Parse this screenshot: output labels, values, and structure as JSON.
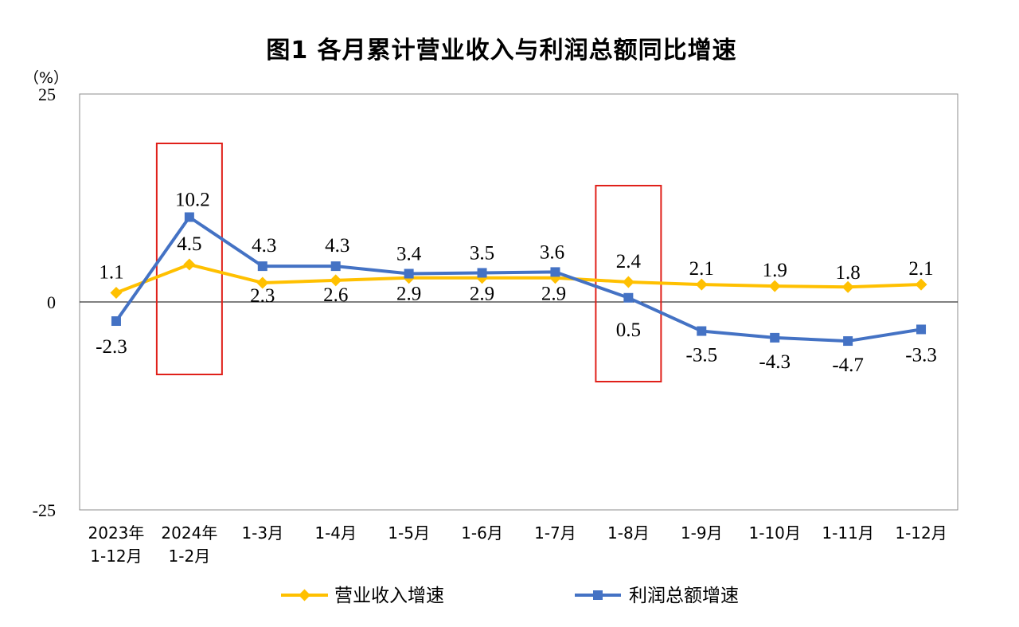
{
  "chart_data": {
    "type": "line",
    "title": "图1  各月累计营业收入与利润总额同比增速",
    "ylabel": "（%）",
    "ylim": [
      -25,
      25
    ],
    "y_ticks": [
      "25",
      "0",
      "-25"
    ],
    "grid": false,
    "legend_position": "bottom",
    "categories": [
      [
        "2023年",
        "1-12月"
      ],
      [
        "2024年",
        "1-2月"
      ],
      [
        "1-3月"
      ],
      [
        "1-4月"
      ],
      [
        "1-5月"
      ],
      [
        "1-6月"
      ],
      [
        "1-7月"
      ],
      [
        "1-8月"
      ],
      [
        "1-9月"
      ],
      [
        "1-10月"
      ],
      [
        "1-11月"
      ],
      [
        "1-12月"
      ]
    ],
    "series": [
      {
        "name": "营业收入增速",
        "color": "#FFC000",
        "marker": "diamond",
        "values": [
          1.1,
          4.5,
          2.3,
          2.6,
          2.9,
          2.9,
          2.9,
          2.4,
          2.1,
          1.9,
          1.8,
          2.1
        ],
        "labels": [
          "1.1",
          "4.5",
          "2.3",
          "2.6",
          "2.9",
          "2.9",
          "2.9",
          "2.4",
          "2.1",
          "1.9",
          "1.8",
          "2.1"
        ]
      },
      {
        "name": "利润总额增速",
        "color": "#4472C4",
        "marker": "square",
        "values": [
          -2.3,
          10.2,
          4.3,
          4.3,
          3.4,
          3.5,
          3.6,
          0.5,
          -3.5,
          -4.3,
          -4.7,
          -3.3
        ],
        "labels": [
          "-2.3",
          "10.2",
          "4.3",
          "4.3",
          "3.4",
          "3.5",
          "3.6",
          "0.5",
          "-3.5",
          "-4.3",
          "-4.7",
          "-3.3"
        ]
      }
    ],
    "highlight_boxes": [
      {
        "category_index": 1,
        "color": "#E0201A"
      },
      {
        "category_index": 7,
        "color": "#E0201A"
      }
    ]
  }
}
